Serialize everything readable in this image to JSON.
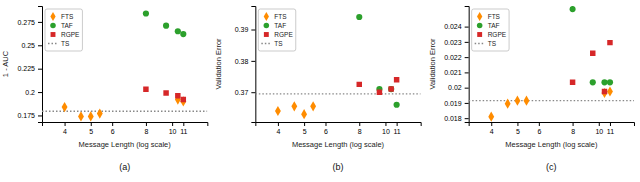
{
  "chart_data": [
    {
      "type": "scatter",
      "title": "(a)",
      "xlabel": "Message Length (log scale)",
      "ylabel": "1 - AUC",
      "log": "x",
      "xlim": [
        3.3,
        13.5
      ],
      "xticks": [
        4,
        5,
        6,
        8,
        10,
        11
      ],
      "ylim": [
        0.168,
        0.292
      ],
      "yticks": [
        0.175,
        0.2,
        0.225,
        0.25,
        0.275
      ],
      "grid": false,
      "legend": "upper left",
      "series": [
        {
          "name": "FTS",
          "color": "#FF8C00",
          "marker": "diamond",
          "x": [
            4.0,
            4.6,
            5.0,
            5.4,
            10.5,
            11.0
          ],
          "values": [
            0.184,
            0.174,
            0.174,
            0.177,
            0.192,
            0.19
          ]
        },
        {
          "name": "TAF",
          "color": "#2ca02c",
          "marker": "circle",
          "x": [
            8.0,
            9.5,
            10.5,
            11.0
          ],
          "values": [
            0.284,
            0.271,
            0.265,
            0.262
          ]
        },
        {
          "name": "RGPE",
          "color": "#d62728",
          "marker": "square",
          "x": [
            8.0,
            9.5,
            10.5,
            11.0
          ],
          "values": [
            0.203,
            0.199,
            0.196,
            0.192
          ]
        },
        {
          "name": "TS",
          "type": "hline",
          "color": "#888888",
          "line_style": "dotted",
          "values": [
            0.1795
          ]
        }
      ]
    },
    {
      "type": "scatter",
      "title": "(b)",
      "xlabel": "Message Length (log scale)",
      "ylabel": "Validation Error",
      "log": "x",
      "xlim": [
        3.3,
        13.5
      ],
      "xticks": [
        4,
        5,
        6,
        8,
        10,
        11
      ],
      "ylim": [
        0.3605,
        0.3975
      ],
      "yticks": [
        0.37,
        0.38,
        0.39
      ],
      "grid": false,
      "legend": "upper left",
      "series": [
        {
          "name": "FTS",
          "color": "#FF8C00",
          "marker": "diamond",
          "x": [
            4.0,
            4.6,
            5.0,
            5.4
          ],
          "values": [
            0.364,
            0.3655,
            0.363,
            0.3655
          ]
        },
        {
          "name": "TAF",
          "color": "#2ca02c",
          "marker": "circle",
          "x": [
            8.0,
            9.5,
            10.5,
            11.0
          ],
          "values": [
            0.394,
            0.371,
            0.371,
            0.366
          ]
        },
        {
          "name": "RGPE",
          "color": "#d62728",
          "marker": "square",
          "x": [
            8.0,
            9.5,
            10.5,
            11.0
          ],
          "values": [
            0.3725,
            0.37,
            0.371,
            0.374
          ]
        },
        {
          "name": "TS",
          "type": "hline",
          "color": "#888888",
          "line_style": "dotted",
          "values": [
            0.3695
          ]
        }
      ]
    },
    {
      "type": "scatter",
      "title": "(c)",
      "xlabel": "Message Length (log scale)",
      "ylabel": "Validation Error",
      "log": "x",
      "xlim": [
        3.3,
        13.5
      ],
      "xticks": [
        4,
        5,
        6,
        8,
        10,
        11
      ],
      "ylim": [
        0.01775,
        0.02535
      ],
      "yticks": [
        0.018,
        0.019,
        0.02,
        0.021,
        0.022,
        0.023,
        0.024
      ],
      "grid": false,
      "legend": "upper left",
      "series": [
        {
          "name": "FTS",
          "color": "#FF8C00",
          "marker": "diamond",
          "x": [
            4.0,
            4.6,
            5.0,
            5.4,
            10.5,
            11.0
          ],
          "values": [
            0.0181,
            0.01895,
            0.01915,
            0.01915,
            0.01965,
            0.01975
          ]
        },
        {
          "name": "TAF",
          "color": "#2ca02c",
          "marker": "circle",
          "x": [
            8.0,
            9.5,
            10.5,
            11.0
          ],
          "values": [
            0.02515,
            0.02035,
            0.02035,
            0.02035
          ]
        },
        {
          "name": "RGPE",
          "color": "#d62728",
          "marker": "square",
          "x": [
            8.0,
            9.5,
            10.5,
            11.0
          ],
          "values": [
            0.02035,
            0.02225,
            0.01975,
            0.02295
          ]
        },
        {
          "name": "TS",
          "type": "hline",
          "color": "#888888",
          "line_style": "dotted",
          "values": [
            0.01915
          ]
        }
      ]
    }
  ]
}
